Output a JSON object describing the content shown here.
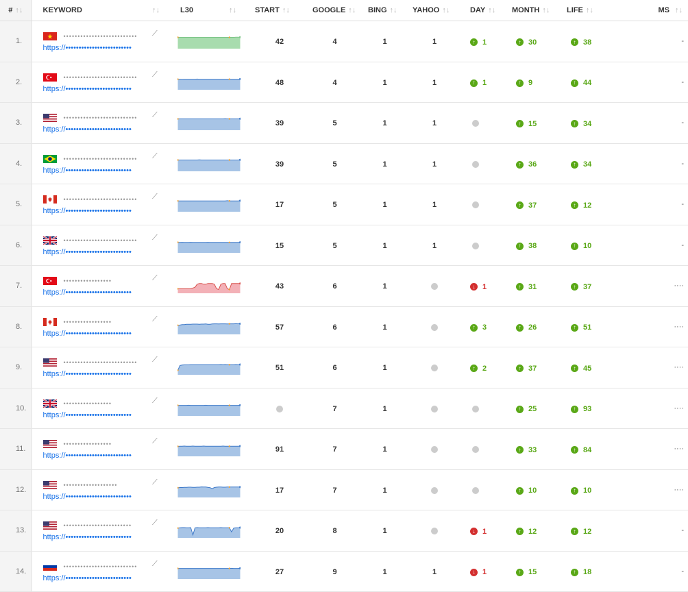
{
  "columns": {
    "idx": "#",
    "keyword": "KEYWORD",
    "l30": "L30",
    "start": "START",
    "google": "GOOGLE",
    "bing": "BING",
    "yahoo": "YAHOO",
    "day": "DAY",
    "month": "MONTH",
    "life": "LIFE",
    "ms": "MS"
  },
  "sort_glyph": "↑↓",
  "trend_glyph": "⟋",
  "up_glyph": "↑",
  "down_glyph": "↓",
  "rows": [
    {
      "idx": "1.",
      "flag": "vietnam",
      "keyword": "••••••••••••••••••••••••••",
      "url": "https://•••••••••••••••••••••••••",
      "spark": [
        0.25,
        0.25,
        0.25,
        0.25,
        0.25,
        0.25,
        0.25,
        0.25,
        0.25,
        0.25,
        0.25,
        0.25,
        0.25,
        0.25,
        0.25,
        0.25,
        0.25,
        0.25,
        0.25,
        0.25,
        0.25,
        0.25,
        0.25,
        0.25,
        0.25,
        0.25,
        0.25,
        0.24,
        0.24,
        0.24
      ],
      "spark_fill": "#a8dcae",
      "spark_line": "#7cc587",
      "start": "42",
      "google": "4",
      "bing": "1",
      "yahoo": "1",
      "day": {
        "dir": "up",
        "val": "1"
      },
      "month": {
        "dir": "up",
        "val": "30"
      },
      "life": {
        "dir": "up",
        "val": "38"
      },
      "ms": "-"
    },
    {
      "idx": "2.",
      "flag": "turkey",
      "keyword": "••••••••••••••••••••••••••",
      "url": "https://•••••••••••••••••••••••••",
      "spark": [
        0.3,
        0.3,
        0.31,
        0.3,
        0.3,
        0.3,
        0.3,
        0.3,
        0.3,
        0.29,
        0.3,
        0.3,
        0.3,
        0.3,
        0.3,
        0.3,
        0.3,
        0.3,
        0.3,
        0.3,
        0.3,
        0.3,
        0.3,
        0.3,
        0.3,
        0.3,
        0.3,
        0.3,
        0.3,
        0.29
      ],
      "spark_fill": "#a7c4e6",
      "spark_line": "#3d79c9",
      "start": "48",
      "google": "4",
      "bing": "1",
      "yahoo": "1",
      "day": {
        "dir": "up",
        "val": "1"
      },
      "month": {
        "dir": "up",
        "val": "9"
      },
      "life": {
        "dir": "up",
        "val": "44"
      },
      "ms": "-"
    },
    {
      "idx": "3.",
      "flag": "usa",
      "keyword": "••••••••••••••••••••••••••",
      "url": "https://•••••••••••••••••••••••••",
      "spark": [
        0.25,
        0.25,
        0.25,
        0.25,
        0.25,
        0.25,
        0.25,
        0.25,
        0.25,
        0.25,
        0.25,
        0.25,
        0.25,
        0.25,
        0.25,
        0.25,
        0.25,
        0.25,
        0.25,
        0.25,
        0.25,
        0.25,
        0.24,
        0.25,
        0.25,
        0.25,
        0.25,
        0.25,
        0.25,
        0.24
      ],
      "spark_fill": "#a7c4e6",
      "spark_line": "#3d79c9",
      "start": "39",
      "google": "5",
      "bing": "1",
      "yahoo": "1",
      "day": {
        "dir": "none",
        "val": ""
      },
      "month": {
        "dir": "up",
        "val": "15"
      },
      "life": {
        "dir": "up",
        "val": "34"
      },
      "ms": "-"
    },
    {
      "idx": "4.",
      "flag": "brazil",
      "keyword": "••••••••••••••••••••••••••",
      "url": "https://•••••••••••••••••••••••••",
      "spark": [
        0.25,
        0.25,
        0.25,
        0.25,
        0.25,
        0.25,
        0.25,
        0.25,
        0.25,
        0.25,
        0.24,
        0.25,
        0.25,
        0.25,
        0.25,
        0.25,
        0.25,
        0.25,
        0.25,
        0.25,
        0.25,
        0.25,
        0.25,
        0.25,
        0.25,
        0.25,
        0.25,
        0.25,
        0.25,
        0.24
      ],
      "spark_fill": "#a7c4e6",
      "spark_line": "#3d79c9",
      "start": "39",
      "google": "5",
      "bing": "1",
      "yahoo": "1",
      "day": {
        "dir": "none",
        "val": ""
      },
      "month": {
        "dir": "up",
        "val": "36"
      },
      "life": {
        "dir": "up",
        "val": "34"
      },
      "ms": "-"
    },
    {
      "idx": "5.",
      "flag": "canada",
      "keyword": "••••••••••••••••••••••••••",
      "url": "https://•••••••••••••••••••••••••",
      "spark": [
        0.28,
        0.28,
        0.28,
        0.28,
        0.28,
        0.28,
        0.28,
        0.28,
        0.28,
        0.28,
        0.28,
        0.28,
        0.28,
        0.28,
        0.28,
        0.28,
        0.28,
        0.28,
        0.28,
        0.28,
        0.28,
        0.28,
        0.28,
        0.27,
        0.28,
        0.28,
        0.28,
        0.28,
        0.28,
        0.27
      ],
      "spark_fill": "#a7c4e6",
      "spark_line": "#3d79c9",
      "start": "17",
      "google": "5",
      "bing": "1",
      "yahoo": "1",
      "day": {
        "dir": "none",
        "val": ""
      },
      "month": {
        "dir": "up",
        "val": "37"
      },
      "life": {
        "dir": "up",
        "val": "12"
      },
      "ms": "-"
    },
    {
      "idx": "6.",
      "flag": "uk",
      "keyword": "••••••••••••••••••••••••••",
      "url": "https://•••••••••••••••••••••••••",
      "spark": [
        0.3,
        0.31,
        0.3,
        0.31,
        0.31,
        0.31,
        0.3,
        0.31,
        0.31,
        0.31,
        0.31,
        0.31,
        0.31,
        0.31,
        0.3,
        0.31,
        0.31,
        0.31,
        0.31,
        0.31,
        0.31,
        0.31,
        0.31,
        0.31,
        0.31,
        0.31,
        0.31,
        0.31,
        0.31,
        0.3
      ],
      "spark_fill": "#a7c4e6",
      "spark_line": "#3d79c9",
      "start": "15",
      "google": "5",
      "bing": "1",
      "yahoo": "1",
      "day": {
        "dir": "none",
        "val": ""
      },
      "month": {
        "dir": "up",
        "val": "38"
      },
      "life": {
        "dir": "up",
        "val": "10"
      },
      "ms": "-"
    },
    {
      "idx": "7.",
      "flag": "turkey",
      "keyword": "•••••••••••••••••",
      "url": "https://•••••••••••••••••••••••••",
      "spark": [
        0.7,
        0.7,
        0.7,
        0.7,
        0.7,
        0.7,
        0.7,
        0.65,
        0.6,
        0.4,
        0.35,
        0.35,
        0.4,
        0.4,
        0.35,
        0.35,
        0.35,
        0.4,
        0.7,
        0.75,
        0.4,
        0.35,
        0.35,
        0.7,
        0.75,
        0.35,
        0.35,
        0.35,
        0.35,
        0.35
      ],
      "spark_fill": "#f3b1b7",
      "spark_line": "#d9534f",
      "start": "43",
      "google": "6",
      "bing": "1",
      "yahoo": "",
      "day": {
        "dir": "down",
        "val": "1"
      },
      "month": {
        "dir": "up",
        "val": "31"
      },
      "life": {
        "dir": "up",
        "val": "37"
      },
      "ms": "····"
    },
    {
      "idx": "8.",
      "flag": "canada",
      "keyword": "•••••••••••••••••",
      "url": "https://•••••••••••••••••••••••••",
      "spark": [
        0.4,
        0.38,
        0.35,
        0.35,
        0.33,
        0.33,
        0.33,
        0.32,
        0.32,
        0.32,
        0.33,
        0.32,
        0.32,
        0.31,
        0.33,
        0.33,
        0.31,
        0.3,
        0.3,
        0.31,
        0.3,
        0.3,
        0.3,
        0.31,
        0.3,
        0.3,
        0.3,
        0.29,
        0.3,
        0.29
      ],
      "spark_fill": "#a7c4e6",
      "spark_line": "#3d79c9",
      "start": "57",
      "google": "6",
      "bing": "1",
      "yahoo": "",
      "day": {
        "dir": "up",
        "val": "3"
      },
      "month": {
        "dir": "up",
        "val": "26"
      },
      "life": {
        "dir": "up",
        "val": "51"
      },
      "ms": "····"
    },
    {
      "idx": "9.",
      "flag": "usa",
      "keyword": "••••••••••••••••••••••••••",
      "url": "https://•••••••••••••••••••••••••",
      "spark": [
        0.7,
        0.38,
        0.35,
        0.34,
        0.34,
        0.34,
        0.33,
        0.33,
        0.33,
        0.33,
        0.33,
        0.33,
        0.33,
        0.33,
        0.33,
        0.33,
        0.33,
        0.33,
        0.33,
        0.33,
        0.32,
        0.33,
        0.32,
        0.33,
        0.33,
        0.33,
        0.33,
        0.32,
        0.33,
        0.32
      ],
      "spark_fill": "#a7c4e6",
      "spark_line": "#3d79c9",
      "start": "51",
      "google": "6",
      "bing": "1",
      "yahoo": "",
      "day": {
        "dir": "up",
        "val": "2"
      },
      "month": {
        "dir": "up",
        "val": "37"
      },
      "life": {
        "dir": "up",
        "val": "45"
      },
      "ms": "····"
    },
    {
      "idx": "10.",
      "flag": "uk",
      "keyword": "•••••••••••••••••",
      "url": "https://•••••••••••••••••••••••••",
      "spark": [
        0.3,
        0.3,
        0.3,
        0.3,
        0.3,
        0.29,
        0.3,
        0.3,
        0.3,
        0.3,
        0.3,
        0.3,
        0.3,
        0.29,
        0.3,
        0.3,
        0.3,
        0.3,
        0.3,
        0.3,
        0.3,
        0.3,
        0.3,
        0.3,
        0.3,
        0.3,
        0.3,
        0.3,
        0.3,
        0.29
      ],
      "spark_fill": "#a7c4e6",
      "spark_line": "#3d79c9",
      "start": "",
      "google": "7",
      "bing": "1",
      "yahoo": "",
      "day": {
        "dir": "none",
        "val": ""
      },
      "month": {
        "dir": "up",
        "val": "25"
      },
      "life": {
        "dir": "up",
        "val": "93"
      },
      "ms": "····"
    },
    {
      "idx": "11.",
      "flag": "usa",
      "keyword": "•••••••••••••••••",
      "url": "https://•••••••••••••••••••••••••",
      "spark": [
        0.34,
        0.33,
        0.33,
        0.32,
        0.33,
        0.33,
        0.33,
        0.32,
        0.33,
        0.33,
        0.33,
        0.33,
        0.32,
        0.33,
        0.33,
        0.33,
        0.33,
        0.33,
        0.33,
        0.33,
        0.33,
        0.32,
        0.33,
        0.33,
        0.33,
        0.33,
        0.33,
        0.33,
        0.33,
        0.32
      ],
      "spark_fill": "#a7c4e6",
      "spark_line": "#3d79c9",
      "start": "91",
      "google": "7",
      "bing": "1",
      "yahoo": "",
      "day": {
        "dir": "none",
        "val": ""
      },
      "month": {
        "dir": "up",
        "val": "33"
      },
      "life": {
        "dir": "up",
        "val": "84"
      },
      "ms": "····"
    },
    {
      "idx": "12.",
      "flag": "usa",
      "keyword": "•••••••••••••••••••",
      "url": "https://•••••••••••••••••••••••••",
      "spark": [
        0.36,
        0.34,
        0.34,
        0.33,
        0.33,
        0.32,
        0.32,
        0.33,
        0.33,
        0.32,
        0.32,
        0.3,
        0.31,
        0.31,
        0.33,
        0.35,
        0.42,
        0.34,
        0.32,
        0.31,
        0.31,
        0.32,
        0.32,
        0.31,
        0.31,
        0.31,
        0.31,
        0.31,
        0.31,
        0.31
      ],
      "spark_fill": "#a7c4e6",
      "spark_line": "#3d79c9",
      "start": "17",
      "google": "7",
      "bing": "1",
      "yahoo": "",
      "day": {
        "dir": "none",
        "val": ""
      },
      "month": {
        "dir": "up",
        "val": "10"
      },
      "life": {
        "dir": "up",
        "val": "10"
      },
      "ms": "····"
    },
    {
      "idx": "13.",
      "flag": "usa",
      "keyword": "••••••••••••••••••••••••",
      "url": "https://•••••••••••••••••••••••••",
      "spark": [
        0.35,
        0.33,
        0.32,
        0.32,
        0.33,
        0.33,
        0.32,
        0.8,
        0.33,
        0.32,
        0.33,
        0.33,
        0.33,
        0.33,
        0.32,
        0.33,
        0.33,
        0.33,
        0.33,
        0.33,
        0.32,
        0.33,
        0.33,
        0.33,
        0.33,
        0.6,
        0.35,
        0.33,
        0.33,
        0.32
      ],
      "spark_fill": "#a7c4e6",
      "spark_line": "#3d79c9",
      "start": "20",
      "google": "8",
      "bing": "1",
      "yahoo": "",
      "day": {
        "dir": "down",
        "val": "1"
      },
      "month": {
        "dir": "up",
        "val": "12"
      },
      "life": {
        "dir": "up",
        "val": "12"
      },
      "ms": "-"
    },
    {
      "idx": "14.",
      "flag": "russia",
      "keyword": "••••••••••••••••••••••••••",
      "url": "https://•••••••••••••••••••••••••",
      "spark": [
        0.3,
        0.3,
        0.3,
        0.3,
        0.3,
        0.3,
        0.3,
        0.3,
        0.3,
        0.3,
        0.3,
        0.3,
        0.3,
        0.3,
        0.3,
        0.3,
        0.3,
        0.3,
        0.3,
        0.3,
        0.3,
        0.3,
        0.3,
        0.3,
        0.3,
        0.29,
        0.3,
        0.3,
        0.3,
        0.29
      ],
      "spark_fill": "#a7c4e6",
      "spark_line": "#3d79c9",
      "start": "27",
      "google": "9",
      "bing": "1",
      "yahoo": "1",
      "day": {
        "dir": "down",
        "val": "1"
      },
      "month": {
        "dir": "up",
        "val": "15"
      },
      "life": {
        "dir": "up",
        "val": "18"
      },
      "ms": "-"
    }
  ]
}
